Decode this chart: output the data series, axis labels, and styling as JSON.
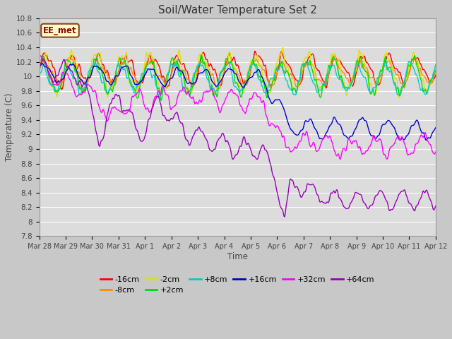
{
  "title": "Soil/Water Temperature Set 2",
  "xlabel": "Time",
  "ylabel": "Temperature (C)",
  "ylim": [
    7.8,
    10.8
  ],
  "fig_bg": "#c8c8c8",
  "plot_bg": "#dcdcdc",
  "grid_color": "#ffffff",
  "annotation_text": "EE_met",
  "annotation_bg": "#ffffcc",
  "annotation_border": "#8b4513",
  "series": [
    {
      "label": "-16cm",
      "color": "#ff0000"
    },
    {
      "label": "-8cm",
      "color": "#ff8c00"
    },
    {
      "label": "-2cm",
      "color": "#e0e000"
    },
    {
      "label": "+2cm",
      "color": "#00dd00"
    },
    {
      "label": "+8cm",
      "color": "#00cccc"
    },
    {
      "label": "+16cm",
      "color": "#0000cc"
    },
    {
      "label": "+32cm",
      "color": "#ff00ff"
    },
    {
      "label": "+64cm",
      "color": "#9900bb"
    }
  ],
  "xtick_labels": [
    "Mar 28",
    "Mar 29",
    "Mar 30",
    "Mar 31",
    "Apr 1",
    "Apr 2",
    "Apr 3",
    "Apr 4",
    "Apr 5",
    "Apr 6",
    "Apr 7",
    "Apr 8",
    "Apr 9",
    "Apr 10",
    "Apr 11",
    "Apr 12"
  ],
  "ytick_values": [
    7.8,
    8.0,
    8.2,
    8.4,
    8.6,
    8.8,
    9.0,
    9.2,
    9.4,
    9.6,
    9.8,
    10.0,
    10.2,
    10.4,
    10.6,
    10.8
  ]
}
